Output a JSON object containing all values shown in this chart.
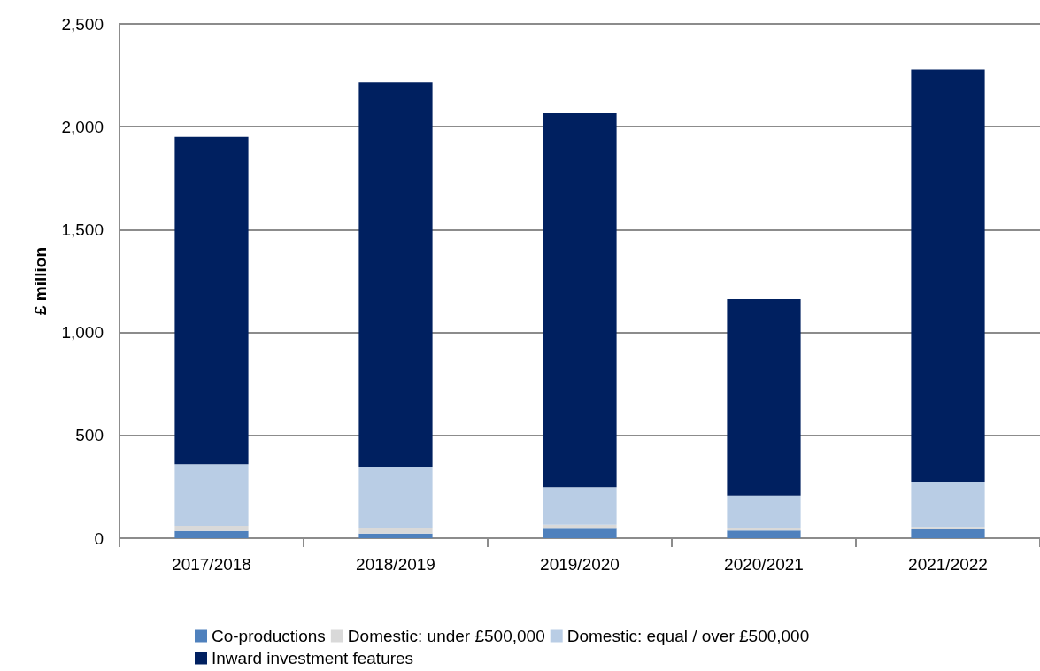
{
  "chart_data": {
    "type": "bar",
    "stacked": true,
    "ylabel": "£ million",
    "categories": [
      "2017/2018",
      "2018/2019",
      "2019/2020",
      "2020/2021",
      "2021/2022"
    ],
    "series": [
      {
        "name": "Co-productions",
        "color": "#4f81bd",
        "values": [
          36,
          23,
          46,
          38,
          43
        ]
      },
      {
        "name": "Domestic: under £500,000",
        "color": "#d9d9d9",
        "values": [
          24,
          26,
          20,
          12,
          12
        ]
      },
      {
        "name": "Domestic: equal / over £500,000",
        "color": "#b9cde5",
        "values": [
          300,
          300,
          182,
          158,
          218
        ]
      },
      {
        "name": "Inward investment features",
        "color": "#002060",
        "values": [
          1590,
          1866,
          1817,
          954,
          2005
        ]
      }
    ],
    "ylim": [
      0,
      2500
    ],
    "yticks": [
      0,
      500,
      {
        "value": 1000,
        "label": "1,000"
      },
      {
        "value": 1500,
        "label": "1,500"
      },
      {
        "value": 2000,
        "label": "2,000"
      },
      {
        "value": 2500,
        "label": "2,500"
      }
    ],
    "grid": "y",
    "legend": "bottom"
  }
}
